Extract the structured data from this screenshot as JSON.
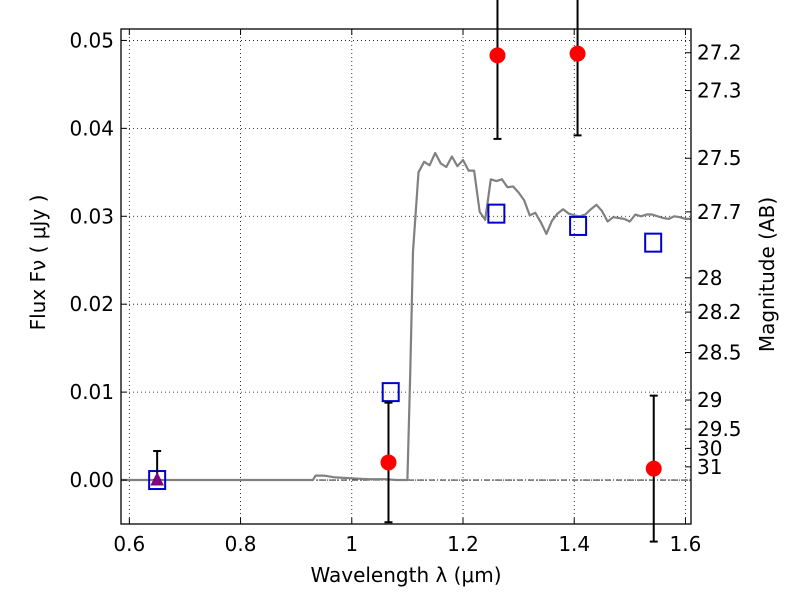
{
  "chart_data": {
    "type": "scatter",
    "xlabel": "Wavelength  λ (μm)",
    "ylabel": "Flux  Fν ( μJy )",
    "y2label": "Magnitude (AB)",
    "xlim": [
      0.585,
      1.61
    ],
    "ylim": [
      -0.005,
      0.0513
    ],
    "x_ticks": [
      0.6,
      0.8,
      1.0,
      1.2,
      1.4,
      1.6
    ],
    "x_tick_labels": [
      "0.6",
      "0.8",
      "1",
      "1.2",
      "1.4",
      "1.6"
    ],
    "y_ticks": [
      0.0,
      0.01,
      0.02,
      0.03,
      0.04,
      0.05
    ],
    "y_tick_labels": [
      "0.00",
      "0.01",
      "0.02",
      "0.03",
      "0.04",
      "0.05"
    ],
    "y2_ticks": [
      {
        "label": "27.2",
        "flux": 0.0486
      },
      {
        "label": "27.3",
        "flux": 0.0443
      },
      {
        "label": "27.5",
        "flux": 0.0366
      },
      {
        "label": "27.7",
        "flux": 0.0305
      },
      {
        "label": "28",
        "flux": 0.023
      },
      {
        "label": "28.2",
        "flux": 0.0191
      },
      {
        "label": "28.5",
        "flux": 0.0145
      },
      {
        "label": "29",
        "flux": 0.0091
      },
      {
        "label": "29.5",
        "flux": 0.0058
      },
      {
        "label": "30",
        "flux": 0.0036
      },
      {
        "label": "31",
        "flux": 0.0015
      }
    ],
    "grid": true,
    "model_spectrum": {
      "color": "#808080",
      "x": [
        0.585,
        0.88,
        0.93,
        0.935,
        0.95,
        0.97,
        1.0,
        1.03,
        1.06,
        1.08,
        1.095,
        1.1,
        1.105,
        1.11,
        1.12,
        1.13,
        1.14,
        1.15,
        1.16,
        1.17,
        1.18,
        1.19,
        1.2,
        1.21,
        1.22,
        1.23,
        1.24,
        1.25,
        1.26,
        1.27,
        1.28,
        1.29,
        1.3,
        1.31,
        1.32,
        1.33,
        1.34,
        1.35,
        1.36,
        1.37,
        1.38,
        1.39,
        1.4,
        1.41,
        1.42,
        1.43,
        1.44,
        1.45,
        1.46,
        1.47,
        1.48,
        1.49,
        1.5,
        1.51,
        1.52,
        1.53,
        1.54,
        1.55,
        1.56,
        1.57,
        1.58,
        1.59,
        1.6,
        1.61
      ],
      "y": [
        0.0,
        0.0,
        0.0,
        0.0005,
        0.0005,
        0.0003,
        0.0002,
        0.0001,
        0.0001,
        0.0,
        0.0,
        0.0,
        0.012,
        0.026,
        0.035,
        0.0362,
        0.0358,
        0.0372,
        0.036,
        0.0356,
        0.0368,
        0.0357,
        0.0364,
        0.0352,
        0.0352,
        0.0305,
        0.0296,
        0.0342,
        0.034,
        0.0342,
        0.0333,
        0.0334,
        0.0327,
        0.0318,
        0.0301,
        0.0304,
        0.0293,
        0.028,
        0.0295,
        0.0303,
        0.0308,
        0.0303,
        0.0301,
        0.03,
        0.0302,
        0.0308,
        0.0313,
        0.0306,
        0.0294,
        0.0299,
        0.0298,
        0.0297,
        0.0294,
        0.0302,
        0.03,
        0.0302,
        0.0302,
        0.03,
        0.0298,
        0.0297,
        0.03,
        0.0299,
        0.0297,
        0.0297
      ]
    },
    "observed": {
      "color": "#ff0000",
      "points": [
        {
          "x": 1.066,
          "y": 0.002,
          "err_low": 0.0068,
          "err_high": 0.0068
        },
        {
          "x": 1.262,
          "y": 0.0483,
          "err_low": 0.0095,
          "err_high": 0.0095
        },
        {
          "x": 1.406,
          "y": 0.0485,
          "err_low": 0.0093,
          "err_high": 0.0093
        },
        {
          "x": 1.543,
          "y": 0.0013,
          "err_low": 0.0083,
          "err_high": 0.0083
        }
      ]
    },
    "upper_limit": {
      "color": "#800080",
      "points": [
        {
          "x": 0.65,
          "y": 0.0,
          "err_low": 0.0,
          "err_high": 0.0033
        }
      ]
    },
    "model_photometry": {
      "color": "#0000cc",
      "points": [
        {
          "x": 0.65,
          "y": 0.0
        },
        {
          "x": 1.07,
          "y": 0.01
        },
        {
          "x": 1.26,
          "y": 0.0303
        },
        {
          "x": 1.407,
          "y": 0.0289
        },
        {
          "x": 1.542,
          "y": 0.027
        }
      ]
    },
    "zero_line": {
      "y": 0.0,
      "color": "#000000"
    }
  }
}
